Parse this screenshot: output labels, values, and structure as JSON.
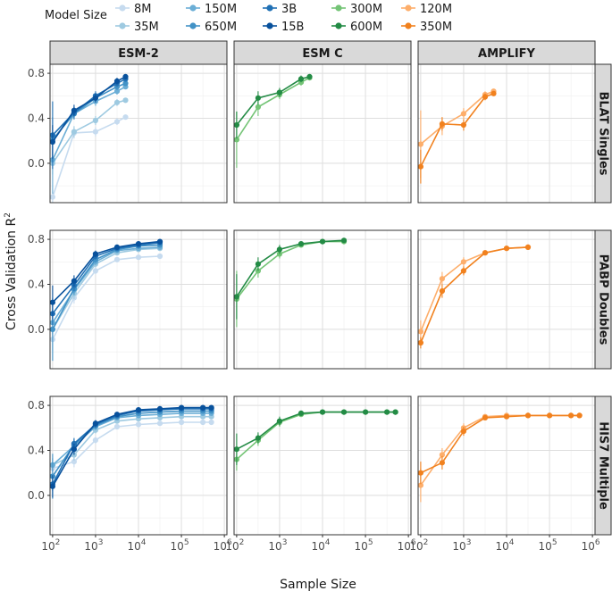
{
  "legend": {
    "title": "Model Size",
    "entries": [
      {
        "name": "8M",
        "color": "#c6dbef"
      },
      {
        "name": "35M",
        "color": "#9ecae1"
      },
      {
        "name": "150M",
        "color": "#6baed6"
      },
      {
        "name": "650M",
        "color": "#4292c6"
      },
      {
        "name": "3B",
        "color": "#2171b5"
      },
      {
        "name": "15B",
        "color": "#08519c"
      },
      {
        "name": "300M",
        "color": "#74c476"
      },
      {
        "name": "600M",
        "color": "#238b45"
      },
      {
        "name": "120M",
        "color": "#fdae6b"
      },
      {
        "name": "350M",
        "color": "#f1811e"
      }
    ]
  },
  "columns": [
    "ESM-2",
    "ESM C",
    "AMPLIFY"
  ],
  "rows": [
    "BLAT Singles",
    "PABP Doubles",
    "HIS7 Multiple"
  ],
  "axes": {
    "xlabel": "Sample Size",
    "ylabel_main": "Cross Validation R",
    "ylabel_sup": "2",
    "x_ticks": [
      {
        "v": 100,
        "base": "10",
        "exp": "2"
      },
      {
        "v": 1000,
        "base": "10",
        "exp": "3"
      },
      {
        "v": 10000,
        "base": "10",
        "exp": "4"
      },
      {
        "v": 100000,
        "base": "10",
        "exp": "5"
      },
      {
        "v": 1000000,
        "base": "10",
        "exp": "6"
      }
    ],
    "y_ticks": [
      "0.0",
      "0.4",
      "0.8"
    ]
  },
  "chart_data": {
    "type": "line",
    "x_scale": "log",
    "xlim": [
      100,
      1000000
    ],
    "grid": true,
    "legend_position": "top",
    "facets": [
      {
        "row": "BLAT Singles",
        "col": "ESM-2",
        "ylim": [
          -0.35,
          0.88
        ],
        "series": [
          {
            "name": "8M",
            "x": [
              100,
              316,
              1000,
              3162,
              5000
            ],
            "y": [
              -0.3,
              0.27,
              0.28,
              0.37,
              0.41
            ],
            "err": [
              0.05,
              0.05,
              0.04,
              0.03,
              0.02
            ]
          },
          {
            "name": "35M",
            "x": [
              100,
              316,
              1000,
              3162,
              5000
            ],
            "y": [
              0.0,
              0.28,
              0.38,
              0.54,
              0.56
            ],
            "err": [
              0.1,
              0.05,
              0.04,
              0.03,
              0.02
            ]
          },
          {
            "name": "150M",
            "x": [
              100,
              316,
              1000,
              3162,
              5000
            ],
            "y": [
              0.03,
              0.44,
              0.55,
              0.64,
              0.68
            ],
            "err": [
              0.3,
              0.05,
              0.04,
              0.03,
              0.02
            ]
          },
          {
            "name": "650M",
            "x": [
              100,
              316,
              1000,
              3162,
              5000
            ],
            "y": [
              0.21,
              0.44,
              0.58,
              0.68,
              0.71
            ],
            "err": [
              0.2,
              0.05,
              0.04,
              0.03,
              0.02
            ]
          },
          {
            "name": "3B",
            "x": [
              100,
              316,
              1000,
              3162,
              5000
            ],
            "y": [
              0.25,
              0.45,
              0.6,
              0.71,
              0.75
            ],
            "err": [
              0.3,
              0.05,
              0.04,
              0.03,
              0.02
            ]
          },
          {
            "name": "15B",
            "x": [
              100,
              316,
              1000,
              3162,
              5000
            ],
            "y": [
              0.19,
              0.47,
              0.58,
              0.73,
              0.77
            ],
            "err": [
              0.15,
              0.05,
              0.04,
              0.03,
              0.02
            ]
          }
        ]
      },
      {
        "row": "BLAT Singles",
        "col": "ESM C",
        "ylim": [
          -0.35,
          0.88
        ],
        "series": [
          {
            "name": "300M",
            "x": [
              100,
              316,
              1000,
              3162,
              5000
            ],
            "y": [
              0.21,
              0.5,
              0.61,
              0.72,
              0.76
            ],
            "err": [
              0.25,
              0.08,
              0.04,
              0.03,
              0.02
            ]
          },
          {
            "name": "600M",
            "x": [
              100,
              316,
              1000,
              3162,
              5000
            ],
            "y": [
              0.34,
              0.58,
              0.63,
              0.75,
              0.77
            ],
            "err": [
              0.12,
              0.06,
              0.04,
              0.03,
              0.02
            ]
          }
        ]
      },
      {
        "row": "BLAT Singles",
        "col": "AMPLIFY",
        "ylim": [
          -0.35,
          0.88
        ],
        "series": [
          {
            "name": "120M",
            "x": [
              100,
              316,
              1000,
              3162,
              5000
            ],
            "y": [
              0.17,
              0.33,
              0.44,
              0.61,
              0.64
            ],
            "err": [
              0.3,
              0.08,
              0.05,
              0.03,
              0.02
            ]
          },
          {
            "name": "350M",
            "x": [
              100,
              316,
              1000,
              3162,
              5000
            ],
            "y": [
              -0.03,
              0.35,
              0.34,
              0.59,
              0.62
            ],
            "err": [
              0.15,
              0.06,
              0.05,
              0.03,
              0.02
            ]
          }
        ]
      },
      {
        "row": "PABP Doubles",
        "col": "ESM-2",
        "ylim": [
          -0.35,
          0.88
        ],
        "series": [
          {
            "name": "8M",
            "x": [
              100,
              316,
              1000,
              3162,
              10000,
              31623
            ],
            "y": [
              -0.09,
              0.28,
              0.52,
              0.62,
              0.64,
              0.65
            ],
            "err": [
              0.1,
              0.05,
              0.03,
              0.02,
              0.01,
              0.01
            ]
          },
          {
            "name": "35M",
            "x": [
              100,
              316,
              1000,
              3162,
              10000,
              31623
            ],
            "y": [
              0.0,
              0.32,
              0.58,
              0.68,
              0.71,
              0.72
            ],
            "err": [
              0.1,
              0.05,
              0.03,
              0.02,
              0.01,
              0.01
            ]
          },
          {
            "name": "150M",
            "x": [
              100,
              316,
              1000,
              3162,
              10000,
              31623
            ],
            "y": [
              0.06,
              0.35,
              0.6,
              0.7,
              0.72,
              0.73
            ],
            "err": [
              0.1,
              0.05,
              0.03,
              0.02,
              0.01,
              0.01
            ]
          },
          {
            "name": "650M",
            "x": [
              100,
              316,
              1000,
              3162,
              10000,
              31623
            ],
            "y": [
              0.0,
              0.36,
              0.62,
              0.71,
              0.74,
              0.75
            ],
            "err": [
              0.28,
              0.05,
              0.03,
              0.02,
              0.01,
              0.01
            ]
          },
          {
            "name": "3B",
            "x": [
              100,
              316,
              1000,
              3162,
              10000,
              31623
            ],
            "y": [
              0.14,
              0.39,
              0.65,
              0.72,
              0.75,
              0.77
            ],
            "err": [
              0.1,
              0.05,
              0.03,
              0.02,
              0.01,
              0.01
            ]
          },
          {
            "name": "15B",
            "x": [
              100,
              316,
              1000,
              3162,
              10000,
              31623
            ],
            "y": [
              0.24,
              0.43,
              0.67,
              0.73,
              0.76,
              0.78
            ],
            "err": [
              0.15,
              0.05,
              0.03,
              0.02,
              0.01,
              0.01
            ]
          }
        ]
      },
      {
        "row": "PABP Doubles",
        "col": "ESM C",
        "ylim": [
          -0.35,
          0.88
        ],
        "series": [
          {
            "name": "300M",
            "x": [
              100,
              316,
              1000,
              3162,
              10000,
              31623
            ],
            "y": [
              0.27,
              0.52,
              0.67,
              0.75,
              0.78,
              0.78
            ],
            "err": [
              0.25,
              0.06,
              0.04,
              0.02,
              0.01,
              0.01
            ]
          },
          {
            "name": "600M",
            "x": [
              100,
              316,
              1000,
              3162,
              10000,
              31623
            ],
            "y": [
              0.29,
              0.58,
              0.71,
              0.76,
              0.78,
              0.79
            ],
            "err": [
              0.2,
              0.06,
              0.04,
              0.02,
              0.01,
              0.01
            ]
          }
        ]
      },
      {
        "row": "PABP Doubles",
        "col": "AMPLIFY",
        "ylim": [
          -0.35,
          0.88
        ],
        "series": [
          {
            "name": "120M",
            "x": [
              100,
              316,
              1000,
              3162,
              10000,
              31623
            ],
            "y": [
              -0.02,
              0.45,
              0.6,
              0.68,
              0.72,
              0.73
            ],
            "err": [
              0.1,
              0.06,
              0.04,
              0.02,
              0.01,
              0.01
            ]
          },
          {
            "name": "350M",
            "x": [
              100,
              316,
              1000,
              3162,
              10000,
              31623
            ],
            "y": [
              -0.12,
              0.34,
              0.52,
              0.68,
              0.72,
              0.73
            ],
            "err": [
              0.05,
              0.06,
              0.04,
              0.02,
              0.01,
              0.01
            ]
          }
        ]
      },
      {
        "row": "HIS7 Multiple",
        "col": "ESM-2",
        "ylim": [
          -0.35,
          0.88
        ],
        "series": [
          {
            "name": "8M",
            "x": [
              100,
              316,
              1000,
              3162,
              10000,
              31623,
              100000,
              316228,
              500000
            ],
            "y": [
              0.24,
              0.3,
              0.49,
              0.61,
              0.63,
              0.64,
              0.65,
              0.65,
              0.65
            ],
            "err": [
              0.06,
              0.05,
              0.03,
              0.02,
              0.01,
              0.01,
              0.01,
              0.01,
              0.01
            ]
          },
          {
            "name": "35M",
            "x": [
              100,
              316,
              1000,
              3162,
              10000,
              31623,
              100000,
              316228,
              500000
            ],
            "y": [
              0.27,
              0.36,
              0.58,
              0.66,
              0.68,
              0.69,
              0.7,
              0.7,
              0.7
            ],
            "err": [
              0.06,
              0.05,
              0.03,
              0.02,
              0.01,
              0.01,
              0.01,
              0.01,
              0.01
            ]
          },
          {
            "name": "150M",
            "x": [
              100,
              316,
              1000,
              3162,
              10000,
              31623,
              100000,
              316228,
              500000
            ],
            "y": [
              0.27,
              0.44,
              0.61,
              0.69,
              0.71,
              0.72,
              0.73,
              0.73,
              0.73
            ],
            "err": [
              0.06,
              0.05,
              0.03,
              0.02,
              0.01,
              0.01,
              0.01,
              0.01,
              0.01
            ]
          },
          {
            "name": "650M",
            "x": [
              100,
              316,
              1000,
              3162,
              10000,
              31623,
              100000,
              316228,
              500000
            ],
            "y": [
              0.17,
              0.45,
              0.62,
              0.7,
              0.73,
              0.74,
              0.75,
              0.75,
              0.75
            ],
            "err": [
              0.2,
              0.05,
              0.03,
              0.02,
              0.01,
              0.01,
              0.01,
              0.01,
              0.01
            ]
          },
          {
            "name": "3B",
            "x": [
              100,
              316,
              1000,
              3162,
              10000,
              31623,
              100000,
              316228,
              500000
            ],
            "y": [
              0.1,
              0.46,
              0.63,
              0.71,
              0.75,
              0.76,
              0.77,
              0.77,
              0.77
            ],
            "err": [
              0.06,
              0.05,
              0.03,
              0.02,
              0.01,
              0.01,
              0.01,
              0.01,
              0.01
            ]
          },
          {
            "name": "15B",
            "x": [
              100,
              316,
              1000,
              3162,
              10000,
              31623,
              100000,
              316228,
              500000
            ],
            "y": [
              0.08,
              0.41,
              0.64,
              0.72,
              0.76,
              0.77,
              0.78,
              0.78,
              0.78
            ],
            "err": [
              0.1,
              0.05,
              0.03,
              0.02,
              0.01,
              0.01,
              0.01,
              0.01,
              0.01
            ]
          }
        ]
      },
      {
        "row": "HIS7 Multiple",
        "col": "ESM C",
        "ylim": [
          -0.35,
          0.88
        ],
        "series": [
          {
            "name": "300M",
            "x": [
              100,
              316,
              1000,
              3162,
              10000,
              31623,
              100000,
              316228,
              500000
            ],
            "y": [
              0.32,
              0.49,
              0.65,
              0.72,
              0.74,
              0.74,
              0.74,
              0.74,
              0.74
            ],
            "err": [
              0.1,
              0.05,
              0.04,
              0.02,
              0.01,
              0.01,
              0.01,
              0.01,
              0.01
            ]
          },
          {
            "name": "600M",
            "x": [
              100,
              316,
              1000,
              3162,
              10000,
              31623,
              100000,
              316228,
              500000
            ],
            "y": [
              0.41,
              0.51,
              0.66,
              0.73,
              0.74,
              0.74,
              0.74,
              0.74,
              0.74
            ],
            "err": [
              0.14,
              0.05,
              0.04,
              0.02,
              0.01,
              0.01,
              0.01,
              0.01,
              0.01
            ]
          }
        ]
      },
      {
        "row": "HIS7 Multiple",
        "col": "AMPLIFY",
        "ylim": [
          -0.35,
          0.88
        ],
        "series": [
          {
            "name": "120M",
            "x": [
              100,
              316,
              1000,
              3162,
              10000,
              31623,
              100000,
              316228,
              500000
            ],
            "y": [
              0.09,
              0.36,
              0.6,
              0.7,
              0.71,
              0.71,
              0.71,
              0.71,
              0.71
            ],
            "err": [
              0.15,
              0.06,
              0.04,
              0.02,
              0.01,
              0.01,
              0.01,
              0.01,
              0.01
            ]
          },
          {
            "name": "350M",
            "x": [
              100,
              316,
              1000,
              3162,
              10000,
              31623,
              100000,
              316228,
              500000
            ],
            "y": [
              0.2,
              0.29,
              0.57,
              0.69,
              0.7,
              0.71,
              0.71,
              0.71,
              0.71
            ],
            "err": [
              0.1,
              0.06,
              0.04,
              0.02,
              0.01,
              0.01,
              0.01,
              0.01,
              0.01
            ]
          }
        ]
      }
    ]
  }
}
